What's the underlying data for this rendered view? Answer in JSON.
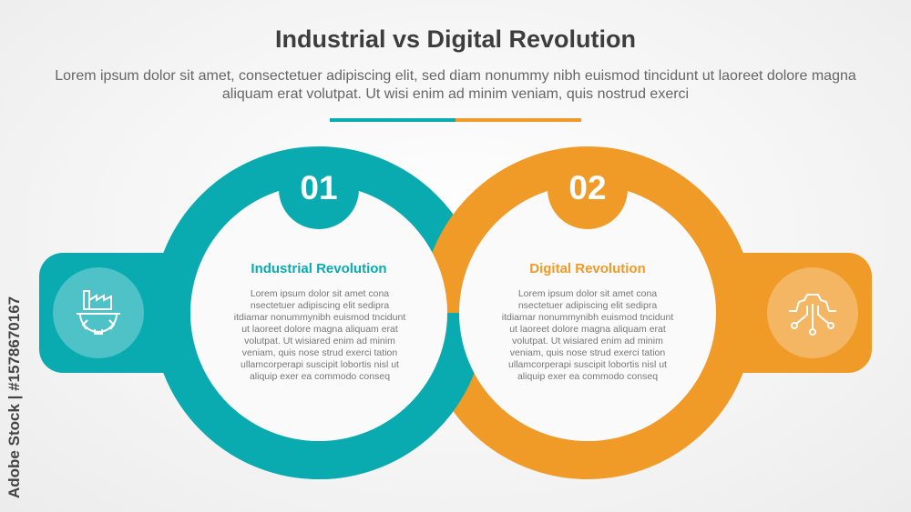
{
  "title": "Industrial vs Digital Revolution",
  "subtitle": "Lorem ipsum dolor sit amet, consectetuer adipiscing elit, sed diam nonummy nibh euismod tincidunt ut laoreet dolore magna aliquam erat volutpat. Ut wisi enim ad minim veniam, quis nostrud exerci",
  "colors": {
    "teal": "#0AABB0",
    "orange": "#F09A27"
  },
  "items": [
    {
      "number": "01",
      "heading": "Industrial Revolution",
      "body": "Lorem ipsum dolor sit amet cona nsectetuer adipiscing elit sedipra itdiamar nonummynibh euismod tncidunt ut laoreet dolore magna aliquam erat volutpat. Ut wisiared enim ad minim veniam, quis nose strud exerci tation ullamcorperapi suscipit lobortis nisl ut aliquip exer ea commodo conseq",
      "icon": "factory-gear-icon"
    },
    {
      "number": "02",
      "heading": "Digital Revolution",
      "body": "Lorem ipsum dolor sit amet cona nsectetuer adipiscing elit sedipra itdiamar nonummynibh euismod tncidunt ut laoreet dolore magna aliquam erat volutpat. Ut wisiared enim ad minim veniam, quis nose strud exerci tation ullamcorperapi suscipit lobortis nisl ut aliquip exer ea commodo conseq",
      "icon": "gear-circuit-icon"
    }
  ],
  "watermark": "Adobe Stock | #1578670167"
}
